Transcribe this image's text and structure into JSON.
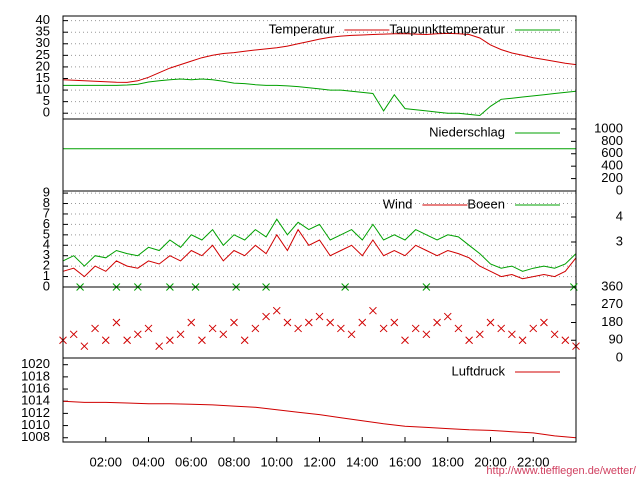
{
  "chart_data": [
    {
      "type": "line",
      "xlim": [
        0,
        24
      ],
      "ylim": [
        -2.5,
        42
      ],
      "yticks": [
        0,
        5,
        10,
        15,
        20,
        25,
        30,
        35,
        40
      ],
      "grid": true,
      "x": [
        0,
        0.5,
        1,
        1.5,
        2,
        2.5,
        3,
        3.5,
        4,
        4.5,
        5,
        5.5,
        6,
        6.5,
        7,
        7.5,
        8,
        8.5,
        9,
        9.5,
        10,
        10.5,
        11,
        11.5,
        12,
        12.5,
        13,
        13.5,
        14,
        14.5,
        15,
        15.5,
        16,
        16.5,
        17,
        17.5,
        18,
        18.5,
        19,
        19.5,
        20,
        20.5,
        21,
        21.5,
        22,
        22.5,
        23,
        23.5,
        24
      ],
      "series": [
        {
          "name": "Temperatur",
          "color": "#d00000",
          "values": [
            14.5,
            14.2,
            14,
            13.8,
            13.6,
            13.4,
            13.3,
            14,
            15.5,
            17.5,
            19.5,
            21,
            22.5,
            24,
            25,
            25.8,
            26.2,
            26.8,
            27.3,
            27.8,
            28.3,
            29,
            30,
            31,
            32,
            32.8,
            33.3,
            33.6,
            33.8,
            34,
            34.2,
            34.3,
            34.4,
            34.2,
            34,
            34.3,
            34.5,
            34.3,
            34,
            32.5,
            29.5,
            27.5,
            26,
            25,
            24,
            23.2,
            22.4,
            21.6,
            21
          ]
        },
        {
          "name": "Taupunkttemperatur",
          "color": "#00a000",
          "values": [
            12,
            12,
            12,
            12,
            12,
            12,
            12.2,
            12.5,
            13.5,
            14,
            14.5,
            14.8,
            14.5,
            14.8,
            14.5,
            13.8,
            13,
            12.8,
            12.3,
            12,
            12,
            11.8,
            11.5,
            11,
            10.5,
            10,
            10,
            9.5,
            9,
            8.5,
            1,
            8,
            2,
            1.5,
            1,
            0.5,
            0,
            0,
            -0.5,
            -1,
            3,
            6,
            6.5,
            7,
            7.5,
            8,
            8.5,
            9,
            9.5
          ]
        }
      ]
    },
    {
      "type": "line",
      "xlim": [
        0,
        24
      ],
      "y2lim": [
        0,
        1160
      ],
      "y2ticks": [
        0,
        200,
        400,
        600,
        800,
        1000
      ],
      "x": [
        0,
        24
      ],
      "series": [
        {
          "name": "Niederschlag",
          "color": "#00a000",
          "axis": "y2",
          "values": [
            680,
            680
          ]
        }
      ]
    },
    {
      "type": "line",
      "xlim": [
        0,
        24
      ],
      "ylim": [
        0,
        9.2
      ],
      "yticks": [
        0,
        1,
        2,
        3,
        4,
        5,
        6,
        7,
        8,
        9
      ],
      "y2lim": [
        1.2,
        5.04
      ],
      "y2ticks": [
        3,
        4
      ],
      "grid": true,
      "x": [
        0,
        0.5,
        1,
        1.5,
        2,
        2.5,
        3,
        3.5,
        4,
        4.5,
        5,
        5.5,
        6,
        6.5,
        7,
        7.5,
        8,
        8.5,
        9,
        9.5,
        10,
        10.5,
        11,
        11.5,
        12,
        12.5,
        13,
        13.5,
        14,
        14.5,
        15,
        15.5,
        16,
        16.5,
        17,
        17.5,
        18,
        18.5,
        19,
        19.5,
        20,
        20.5,
        21,
        21.5,
        22,
        22.5,
        23,
        23.5,
        24
      ],
      "series": [
        {
          "name": "Wind",
          "color": "#d00000",
          "values": [
            1.5,
            1.8,
            1,
            2,
            1.5,
            2.5,
            2,
            1.8,
            2.5,
            2.2,
            3,
            2.5,
            3.5,
            3,
            4,
            2.5,
            3.5,
            3,
            4,
            3.2,
            5,
            3.5,
            5.5,
            4,
            4.5,
            3,
            3.5,
            4,
            3,
            4.5,
            3,
            3.5,
            3,
            4,
            3.5,
            3,
            3.5,
            3.2,
            2.8,
            2,
            1.5,
            1,
            1.2,
            0.8,
            1,
            1.2,
            1,
            1.5,
            2.8
          ]
        },
        {
          "name": "Boeen",
          "color": "#00a000",
          "values": [
            2.5,
            3,
            2,
            3,
            2.8,
            3.5,
            3.2,
            3,
            3.8,
            3.5,
            4.5,
            3.8,
            5,
            4.5,
            5.5,
            4,
            5,
            4.5,
            5.5,
            4.8,
            6.5,
            5,
            6.2,
            5.5,
            6,
            4.5,
            5,
            5.5,
            4.5,
            6,
            4.5,
            5,
            4.5,
            5.5,
            5,
            4.5,
            5,
            4.8,
            4,
            3.2,
            2.2,
            1.8,
            2,
            1.5,
            1.8,
            2,
            1.8,
            2.2,
            3.2
          ]
        }
      ]
    },
    {
      "type": "scatter",
      "xlim": [
        0,
        24
      ],
      "y2lim": [
        0,
        360
      ],
      "y2ticks": [
        0,
        90,
        180,
        270,
        360
      ],
      "series": [
        {
          "color": "#d00000",
          "axis": "y2",
          "x": [
            0,
            0.5,
            1,
            1.5,
            2,
            2.5,
            3,
            3.5,
            4,
            4.5,
            5,
            5.5,
            6,
            6.5,
            7,
            7.5,
            8,
            8.5,
            9,
            9.5,
            10,
            10.5,
            11,
            11.5,
            12,
            12.5,
            13,
            13.5,
            14,
            14.5,
            15,
            15.5,
            16,
            16.5,
            17,
            17.5,
            18,
            18.5,
            19,
            19.5,
            20,
            20.5,
            21,
            21.5,
            22,
            22.5,
            23,
            23.5,
            24
          ],
          "values": [
            90,
            120,
            60,
            150,
            90,
            180,
            90,
            120,
            150,
            60,
            90,
            120,
            180,
            90,
            150,
            120,
            180,
            90,
            150,
            210,
            240,
            180,
            150,
            180,
            210,
            180,
            150,
            120,
            180,
            240,
            150,
            180,
            90,
            150,
            120,
            180,
            210,
            150,
            90,
            120,
            180,
            150,
            120,
            90,
            150,
            180,
            120,
            90,
            60
          ]
        },
        {
          "color": "#00a000",
          "axis": "y2",
          "x": [
            0.8,
            2.5,
            3.5,
            5.0,
            6.2,
            8.1,
            9.5,
            13.2,
            17.0,
            23.9
          ],
          "values": [
            360,
            360,
            360,
            360,
            360,
            360,
            360,
            360,
            360,
            360
          ]
        }
      ]
    },
    {
      "type": "line",
      "xlim": [
        0,
        24
      ],
      "ylim": [
        1007.3,
        1021.1
      ],
      "yticks": [
        1008,
        1010,
        1012,
        1014,
        1016,
        1018,
        1020
      ],
      "xticks": [
        {
          "value": 2,
          "label": "02:00"
        },
        {
          "value": 4,
          "label": "04:00"
        },
        {
          "value": 6,
          "label": "06:00"
        },
        {
          "value": 8,
          "label": "08:00"
        },
        {
          "value": 10,
          "label": "10:00"
        },
        {
          "value": 12,
          "label": "12:00"
        },
        {
          "value": 14,
          "label": "14:00"
        },
        {
          "value": 16,
          "label": "16:00"
        },
        {
          "value": 18,
          "label": "18:00"
        },
        {
          "value": 20,
          "label": "20:00"
        },
        {
          "value": 22,
          "label": "22:00"
        }
      ],
      "x": [
        0,
        1,
        2,
        3,
        4,
        5,
        6,
        7,
        8,
        9,
        10,
        11,
        12,
        13,
        14,
        15,
        16,
        17,
        18,
        19,
        20,
        21,
        22,
        23,
        24
      ],
      "series": [
        {
          "name": "Luftdruck",
          "color": "#d00000",
          "values": [
            1014,
            1013.8,
            1013.8,
            1013.7,
            1013.6,
            1013.6,
            1013.5,
            1013.4,
            1013.2,
            1013,
            1012.6,
            1012.2,
            1011.8,
            1011.3,
            1010.8,
            1010.3,
            1009.9,
            1009.7,
            1009.5,
            1009.3,
            1009.2,
            1009,
            1008.8,
            1008.3,
            1008
          ]
        }
      ]
    }
  ],
  "footer": "http://www.tiefflegen.de/wetter/"
}
